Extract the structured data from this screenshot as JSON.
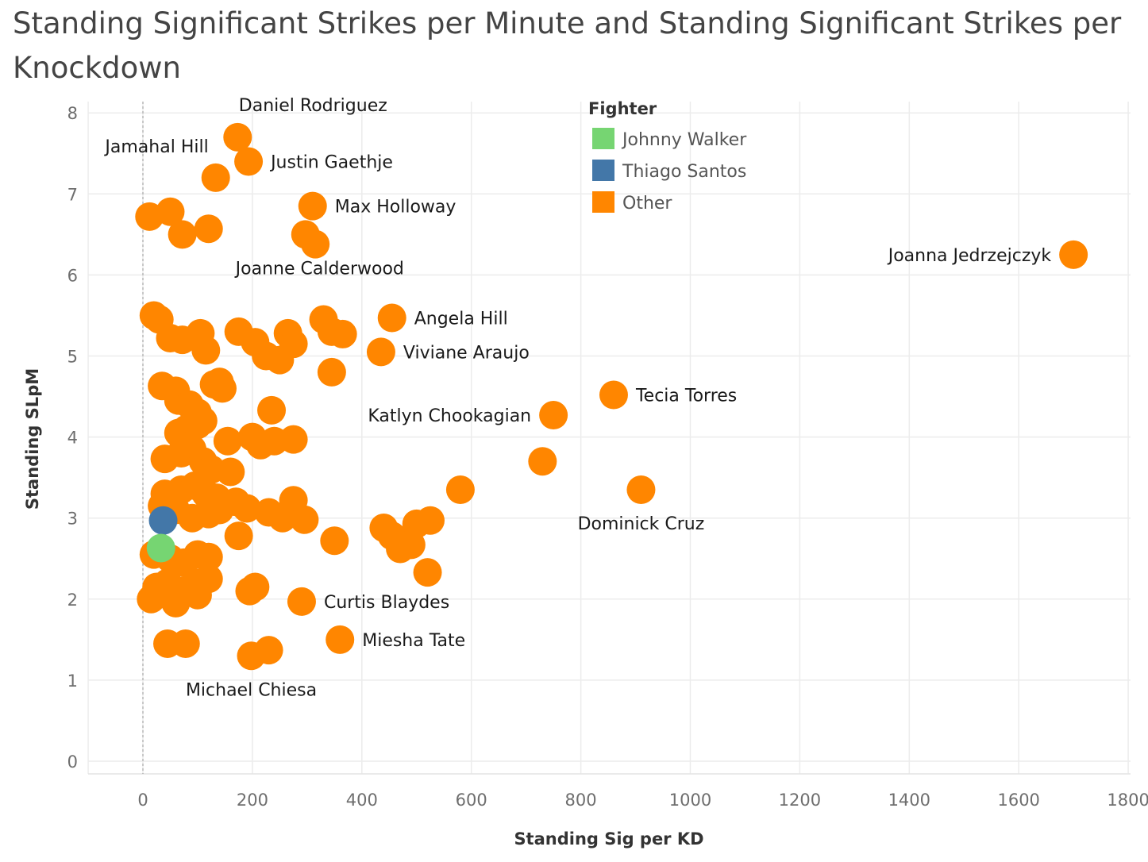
{
  "chart_data": {
    "type": "scatter",
    "title": "Standing Significant Strikes per Minute and Standing Significant Strikes per Knockdown",
    "xlabel": "Standing Sig per KD",
    "ylabel": "Standing SLpM",
    "xlim": [
      -100,
      1800
    ],
    "ylim": [
      0,
      8.1
    ],
    "x_ticks": [
      0,
      200,
      400,
      600,
      800,
      1000,
      1200,
      1400,
      1600,
      1800
    ],
    "y_ticks": [
      0,
      1,
      2,
      3,
      4,
      5,
      6,
      7,
      8
    ],
    "grid": true,
    "zero_line_x": 0,
    "legend": {
      "title": "Fighter",
      "position": "top-center",
      "entries": [
        {
          "name": "Johnny Walker",
          "color": "#76d572"
        },
        {
          "name": "Thiago Santos",
          "color": "#4377a8"
        },
        {
          "name": "Other",
          "color": "#ff8600"
        }
      ]
    },
    "series": [
      {
        "name": "Other",
        "color": "#ff8600",
        "points": [
          {
            "x": 173,
            "y": 7.7,
            "label": "Daniel Rodriguez"
          },
          {
            "x": 193,
            "y": 7.4,
            "label": "Justin Gaethje"
          },
          {
            "x": 133,
            "y": 7.2,
            "label": "Jamahal Hill"
          },
          {
            "x": 310,
            "y": 6.85,
            "label": "Max Holloway"
          },
          {
            "x": 1700,
            "y": 6.25,
            "label": "Joanna Jedrzejczyk"
          },
          {
            "x": 455,
            "y": 5.47,
            "label": "Angela Hill"
          },
          {
            "x": 435,
            "y": 5.05,
            "label": "Viviane Araujo"
          },
          {
            "x": 860,
            "y": 4.52,
            "label": "Tecia Torres"
          },
          {
            "x": 750,
            "y": 4.27,
            "label": "Katlyn Chookagian"
          },
          {
            "x": 910,
            "y": 3.35,
            "label": "Dominick Cruz"
          },
          {
            "x": 290,
            "y": 1.97,
            "label": "Curtis Blaydes"
          },
          {
            "x": 360,
            "y": 1.5,
            "label": "Miesha Tate"
          },
          {
            "x": 198,
            "y": 1.3,
            "label": "Michael Chiesa"
          },
          {
            "x": 297,
            "y": 6.5,
            "label": "Joanne Calderwood"
          },
          {
            "x": 12,
            "y": 6.72
          },
          {
            "x": 50,
            "y": 6.78
          },
          {
            "x": 72,
            "y": 6.5
          },
          {
            "x": 120,
            "y": 6.57
          },
          {
            "x": 315,
            "y": 6.38
          },
          {
            "x": 20,
            "y": 5.5
          },
          {
            "x": 30,
            "y": 5.45
          },
          {
            "x": 50,
            "y": 5.22
          },
          {
            "x": 72,
            "y": 5.2
          },
          {
            "x": 105,
            "y": 5.28
          },
          {
            "x": 115,
            "y": 5.07
          },
          {
            "x": 175,
            "y": 5.3
          },
          {
            "x": 205,
            "y": 5.17
          },
          {
            "x": 225,
            "y": 5.0
          },
          {
            "x": 250,
            "y": 4.95
          },
          {
            "x": 265,
            "y": 5.28
          },
          {
            "x": 275,
            "y": 5.15
          },
          {
            "x": 330,
            "y": 5.45
          },
          {
            "x": 345,
            "y": 5.3
          },
          {
            "x": 365,
            "y": 5.27
          },
          {
            "x": 345,
            "y": 4.8
          },
          {
            "x": 35,
            "y": 4.63
          },
          {
            "x": 60,
            "y": 4.57
          },
          {
            "x": 65,
            "y": 4.45
          },
          {
            "x": 85,
            "y": 4.4
          },
          {
            "x": 100,
            "y": 4.3
          },
          {
            "x": 130,
            "y": 4.65
          },
          {
            "x": 140,
            "y": 4.68
          },
          {
            "x": 145,
            "y": 4.6
          },
          {
            "x": 235,
            "y": 4.33
          },
          {
            "x": 65,
            "y": 4.05
          },
          {
            "x": 80,
            "y": 4.1
          },
          {
            "x": 100,
            "y": 4.15
          },
          {
            "x": 110,
            "y": 4.2
          },
          {
            "x": 155,
            "y": 3.95
          },
          {
            "x": 200,
            "y": 4.0
          },
          {
            "x": 215,
            "y": 3.9
          },
          {
            "x": 240,
            "y": 3.95
          },
          {
            "x": 275,
            "y": 3.97
          },
          {
            "x": 40,
            "y": 3.73
          },
          {
            "x": 70,
            "y": 3.8
          },
          {
            "x": 90,
            "y": 3.85
          },
          {
            "x": 110,
            "y": 3.7
          },
          {
            "x": 125,
            "y": 3.6
          },
          {
            "x": 160,
            "y": 3.57
          },
          {
            "x": 40,
            "y": 3.3
          },
          {
            "x": 70,
            "y": 3.35
          },
          {
            "x": 95,
            "y": 3.4
          },
          {
            "x": 115,
            "y": 3.3
          },
          {
            "x": 135,
            "y": 3.25
          },
          {
            "x": 35,
            "y": 3.15
          },
          {
            "x": 60,
            "y": 3.1
          },
          {
            "x": 90,
            "y": 3.0
          },
          {
            "x": 120,
            "y": 3.05
          },
          {
            "x": 140,
            "y": 3.1
          },
          {
            "x": 170,
            "y": 3.2
          },
          {
            "x": 190,
            "y": 3.12
          },
          {
            "x": 230,
            "y": 3.07
          },
          {
            "x": 255,
            "y": 3.0
          },
          {
            "x": 275,
            "y": 3.22
          },
          {
            "x": 295,
            "y": 2.98
          },
          {
            "x": 175,
            "y": 2.78
          },
          {
            "x": 350,
            "y": 2.72
          },
          {
            "x": 440,
            "y": 2.88
          },
          {
            "x": 455,
            "y": 2.78
          },
          {
            "x": 470,
            "y": 2.62
          },
          {
            "x": 490,
            "y": 2.67
          },
          {
            "x": 500,
            "y": 2.93
          },
          {
            "x": 525,
            "y": 2.97
          },
          {
            "x": 520,
            "y": 2.33
          },
          {
            "x": 580,
            "y": 3.35
          },
          {
            "x": 730,
            "y": 3.7
          },
          {
            "x": 20,
            "y": 2.55
          },
          {
            "x": 50,
            "y": 2.5
          },
          {
            "x": 75,
            "y": 2.45
          },
          {
            "x": 100,
            "y": 2.55
          },
          {
            "x": 120,
            "y": 2.52
          },
          {
            "x": 25,
            "y": 2.15
          },
          {
            "x": 45,
            "y": 2.2
          },
          {
            "x": 70,
            "y": 2.1
          },
          {
            "x": 95,
            "y": 2.2
          },
          {
            "x": 120,
            "y": 2.25
          },
          {
            "x": 15,
            "y": 2.0
          },
          {
            "x": 60,
            "y": 1.95
          },
          {
            "x": 100,
            "y": 2.05
          },
          {
            "x": 195,
            "y": 2.1
          },
          {
            "x": 205,
            "y": 2.15
          },
          {
            "x": 45,
            "y": 1.45
          },
          {
            "x": 78,
            "y": 1.45
          },
          {
            "x": 230,
            "y": 1.37
          }
        ]
      },
      {
        "name": "Thiago Santos",
        "color": "#4377a8",
        "points": [
          {
            "x": 37,
            "y": 2.97
          }
        ]
      },
      {
        "name": "Johnny Walker",
        "color": "#76d572",
        "points": [
          {
            "x": 33,
            "y": 2.63
          }
        ]
      }
    ]
  }
}
